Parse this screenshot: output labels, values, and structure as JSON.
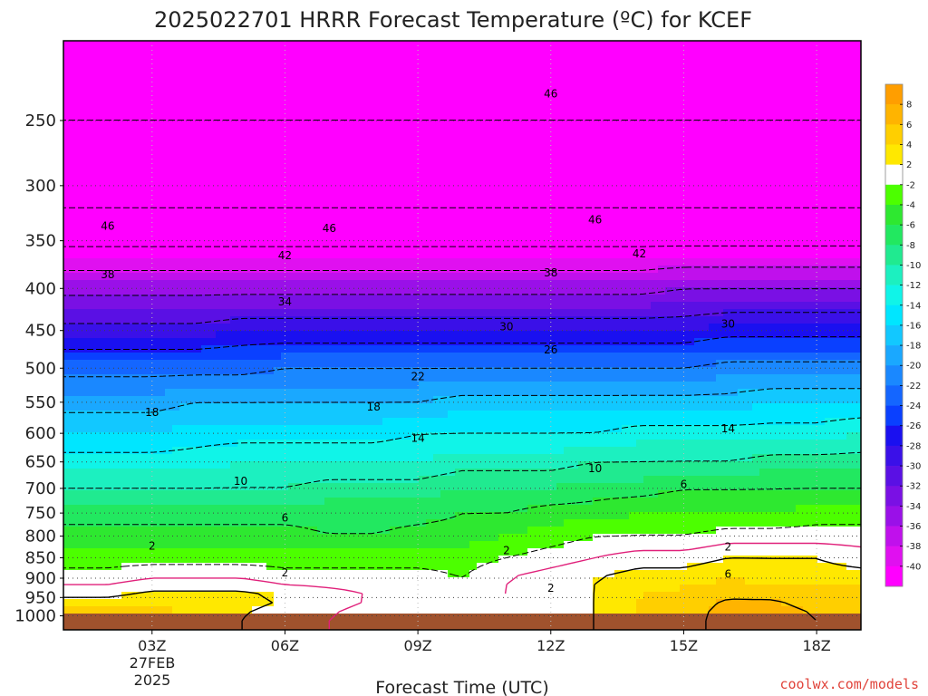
{
  "chart_data": {
    "type": "heatmap",
    "title": "2025022701 HRRR Forecast Temperature (ºC) for KCEF",
    "xlabel": "Forecast Time (UTC)",
    "ylabel": "",
    "credit": "coolwx.com/models",
    "pressure_range_hpa": [
      1040,
      200
    ],
    "pressure_ticks": [
      "250",
      "300",
      "350",
      "400",
      "450",
      "500",
      "550",
      "600",
      "650",
      "700",
      "750",
      "800",
      "850",
      "900",
      "950",
      "1000"
    ],
    "time_ticks": [
      {
        "hour": 3,
        "label": "03Z"
      },
      {
        "hour": 6,
        "label": "06Z"
      },
      {
        "hour": 9,
        "label": "09Z"
      },
      {
        "hour": 12,
        "label": "12Z"
      },
      {
        "hour": 15,
        "label": "15Z"
      },
      {
        "hour": 18,
        "label": "18Z"
      }
    ],
    "date_label": [
      "27FEB",
      "2025"
    ],
    "time_range_hours": [
      1,
      19
    ],
    "colorbar": {
      "labels": [
        "8",
        "6",
        "4",
        "2",
        "-2",
        "-4",
        "-6",
        "-8",
        "-10",
        "-12",
        "-14",
        "-16",
        "-18",
        "-20",
        "-22",
        "-24",
        "-26",
        "-28",
        "-30",
        "-32",
        "-34",
        "-36",
        "-38",
        "-40"
      ],
      "colors": [
        "#ff9e00",
        "#ffb400",
        "#ffcf00",
        "#ffe800",
        "#ffffff",
        "#4cff00",
        "#2ee830",
        "#22e860",
        "#20ea90",
        "#1cf0c0",
        "#10f4e8",
        "#00e6ff",
        "#12c8ff",
        "#1aa8ff",
        "#1a88ff",
        "#1466ff",
        "#0a40ff",
        "#1a10f0",
        "#3a10e8",
        "#5a10e4",
        "#7a10e4",
        "#9a10e8",
        "#c010ec",
        "#e010f0",
        "#ff00ff"
      ]
    },
    "temperature_profiles": [
      {
        "p": 1000,
        "t": [
          5,
          5,
          5,
          4,
          2,
          1,
          0,
          -1,
          -1,
          0,
          0,
          1,
          2,
          4,
          5,
          7,
          7,
          6,
          6
        ]
      },
      {
        "p": 950,
        "t": [
          2,
          2,
          3,
          3,
          3,
          2,
          1,
          0,
          -1,
          0,
          0,
          1,
          2,
          4,
          5,
          6,
          6,
          5,
          5
        ]
      },
      {
        "p": 900,
        "t": [
          -1,
          -1,
          0,
          0,
          0,
          -1,
          -1,
          -1,
          -1,
          -2,
          0,
          1,
          2,
          3,
          3,
          4,
          3,
          3,
          3
        ]
      },
      {
        "p": 850,
        "t": [
          -3,
          -3,
          -3,
          -3,
          -3,
          -3,
          -3,
          -3,
          -3,
          -3,
          -2,
          -1,
          0,
          1,
          1,
          2,
          2,
          2,
          1
        ]
      },
      {
        "p": 800,
        "t": [
          -5,
          -5,
          -5,
          -5,
          -5,
          -5,
          -6,
          -6,
          -5,
          -5,
          -4,
          -3,
          -2,
          -2,
          -2,
          -1,
          -1,
          -1,
          -1
        ]
      },
      {
        "p": 750,
        "t": [
          -7,
          -7,
          -7,
          -7,
          -7,
          -7,
          -7,
          -7,
          -7,
          -6,
          -6,
          -5,
          -5,
          -4,
          -4,
          -4,
          -4,
          -3,
          -3
        ]
      },
      {
        "p": 700,
        "t": [
          -10,
          -10,
          -10,
          -10,
          -10,
          -10,
          -9,
          -9,
          -9,
          -8,
          -8,
          -8,
          -7,
          -7,
          -6,
          -6,
          -6,
          -6,
          -6
        ]
      },
      {
        "p": 650,
        "t": [
          -13,
          -13,
          -13,
          -13,
          -12,
          -12,
          -12,
          -12,
          -12,
          -11,
          -11,
          -11,
          -10,
          -10,
          -10,
          -10,
          -9,
          -9,
          -9
        ]
      },
      {
        "p": 600,
        "t": [
          -16,
          -16,
          -16,
          -15,
          -15,
          -15,
          -15,
          -15,
          -14,
          -14,
          -14,
          -14,
          -14,
          -13,
          -13,
          -13,
          -13,
          -13,
          -12
        ]
      },
      {
        "p": 550,
        "t": [
          -19,
          -19,
          -19,
          -18,
          -18,
          -18,
          -18,
          -18,
          -18,
          -17,
          -17,
          -17,
          -17,
          -17,
          -17,
          -17,
          -16,
          -16,
          -16
        ]
      },
      {
        "p": 500,
        "t": [
          -23,
          -23,
          -23,
          -23,
          -23,
          -22,
          -22,
          -22,
          -22,
          -22,
          -22,
          -22,
          -22,
          -22,
          -22,
          -21,
          -21,
          -21,
          -21
        ]
      },
      {
        "p": 450,
        "t": [
          -29,
          -29,
          -29,
          -29,
          -28,
          -28,
          -28,
          -28,
          -28,
          -28,
          -28,
          -28,
          -28,
          -28,
          -28,
          -27,
          -27,
          -27,
          -27
        ]
      },
      {
        "p": 400,
        "t": [
          -35,
          -35,
          -35,
          -35,
          -35,
          -35,
          -35,
          -35,
          -35,
          -35,
          -35,
          -35,
          -35,
          -35,
          -34,
          -34,
          -34,
          -34,
          -34
        ]
      },
      {
        "p": 350,
        "t": [
          -43,
          -43,
          -43,
          -43,
          -43,
          -43,
          -43,
          -43,
          -43,
          -43,
          -43,
          -43,
          -43,
          -43,
          -43,
          -43,
          -43,
          -43,
          -43
        ]
      },
      {
        "p": 300,
        "t": [
          -48,
          -48,
          -48,
          -48,
          -48,
          -48,
          -48,
          -48,
          -48,
          -48,
          -48,
          -48,
          -48,
          -48,
          -48,
          -48,
          -48,
          -48,
          -48
        ]
      },
      {
        "p": 250,
        "t": [
          -50,
          -50,
          -50,
          -50,
          -50,
          -50,
          -50,
          -50,
          -50,
          -50,
          -50,
          -50,
          -50,
          -50,
          -50,
          -50,
          -50,
          -50,
          -50
        ]
      },
      {
        "p": 200,
        "t": [
          -52,
          -52,
          -52,
          -52,
          -52,
          -52,
          -52,
          -52,
          -52,
          -52,
          -52,
          -52,
          -52,
          -52,
          -52,
          -52,
          -52,
          -52,
          -52
        ]
      }
    ],
    "contour_labels": [
      {
        "text": "46",
        "t": 12,
        "p": 232
      },
      {
        "text": "46",
        "t": 2,
        "p": 336
      },
      {
        "text": "46",
        "t": 7,
        "p": 338
      },
      {
        "text": "46",
        "t": 13,
        "p": 330
      },
      {
        "text": "42",
        "t": 6,
        "p": 365
      },
      {
        "text": "42",
        "t": 14,
        "p": 363
      },
      {
        "text": "38",
        "t": 2,
        "p": 385
      },
      {
        "text": "38",
        "t": 12,
        "p": 383
      },
      {
        "text": "34",
        "t": 6,
        "p": 415
      },
      {
        "text": "30",
        "t": 11,
        "p": 445
      },
      {
        "text": "30",
        "t": 16,
        "p": 442
      },
      {
        "text": "26",
        "t": 12,
        "p": 475
      },
      {
        "text": "22",
        "t": 9,
        "p": 512
      },
      {
        "text": "18",
        "t": 3,
        "p": 566
      },
      {
        "text": "18",
        "t": 8,
        "p": 557
      },
      {
        "text": "14",
        "t": 9,
        "p": 608
      },
      {
        "text": "14",
        "t": 16,
        "p": 592
      },
      {
        "text": "10",
        "t": 5,
        "p": 686
      },
      {
        "text": "10",
        "t": 13,
        "p": 662
      },
      {
        "text": "6",
        "t": 6,
        "p": 760
      },
      {
        "text": "6",
        "t": 15,
        "p": 692
      },
      {
        "text": "6",
        "t": 16,
        "p": 890
      },
      {
        "text": "2",
        "t": 3,
        "p": 822
      },
      {
        "text": "2",
        "t": 6,
        "p": 886
      },
      {
        "text": "2",
        "t": 11,
        "p": 833
      },
      {
        "text": "2",
        "t": 12,
        "p": 925
      },
      {
        "text": "2",
        "t": 16,
        "p": 825
      }
    ],
    "legend": "none",
    "grid": "dotted"
  }
}
